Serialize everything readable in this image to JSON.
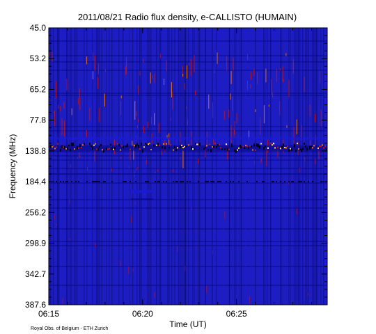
{
  "chart_data": {
    "type": "heatmap",
    "title": "2011/08/21  Radio flux density, e-CALLISTO (HUMAIN)",
    "xlabel": "Time (UT)",
    "ylabel": "Frequency (MHz)",
    "x_ticks": [
      "06:15",
      "06:20",
      "06:25"
    ],
    "x_range": [
      "06:15",
      "06:29:50"
    ],
    "y_ticks": [
      "45.0",
      "53.2",
      "65.2",
      "77.8",
      "138.8",
      "184.4",
      "256.2",
      "298.9",
      "342.7",
      "387.6"
    ],
    "y_range": [
      45.0,
      387.6
    ],
    "y_direction": "frequency increases downward",
    "colormap": [
      "#000010",
      "#0a0a8c",
      "#1a1ad6",
      "#c81414",
      "#ff7a00",
      "#ffd24a",
      "#ffffff"
    ],
    "background_color": "#1e1ec0",
    "features": [
      {
        "label": "broadband interference band",
        "frequency_mhz": 138.8
      },
      {
        "label": "interference line",
        "frequency_mhz": 184.4
      }
    ],
    "credit": "Royal Obs. of Belgium - ETH Zurich"
  }
}
